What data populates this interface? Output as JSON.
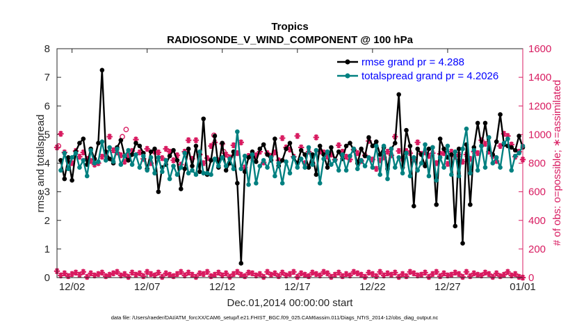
{
  "chart_data": {
    "type": "line",
    "title": "Tropics",
    "subtitle": "RADIOSONDE_V_WIND_COMPONENT @ 100 hPa",
    "xlabel": "Dec.01,2014 00:00:00 start",
    "ylabel": "rmse and totalspread",
    "ylabel_right": "# of obs: o=possible; ∗=assimilated",
    "xlim": [
      0,
      31
    ],
    "ylim": [
      0,
      8
    ],
    "ylim_right": [
      0,
      1600
    ],
    "x_ticks": [
      1,
      6,
      11,
      16,
      21,
      26,
      31
    ],
    "x_tick_labels": [
      "12/02",
      "12/07",
      "12/12",
      "12/17",
      "12/22",
      "12/27",
      "01/01"
    ],
    "y_ticks": [
      0,
      1,
      2,
      3,
      4,
      5,
      6,
      7,
      8
    ],
    "y_ticks_right": [
      0,
      200,
      400,
      600,
      800,
      1000,
      1200,
      1400,
      1600
    ],
    "legend": [
      "rmse grand pr = 4.288",
      "totalspread grand pr = 4.2026"
    ],
    "legend_position": "top-right",
    "colors": {
      "rmse": "#000000",
      "spread": "#008080",
      "obs": "#d81b60",
      "legend_text": "#0000ff"
    },
    "series": [
      {
        "name": "rmse",
        "color": "#000000",
        "values": [
          4.1,
          3.45,
          4.2,
          3.4,
          4.4,
          4.7,
          4.85,
          3.95,
          4.5,
          4.15,
          4.7,
          7.25,
          4.4,
          4.15,
          4.0,
          4.55,
          4.8,
          4.25,
          4.1,
          4.3,
          4.7,
          4.6,
          4.35,
          3.8,
          4.4,
          4.5,
          3.0,
          3.85,
          3.95,
          4.25,
          4.45,
          4.1,
          3.1,
          3.8,
          4.5,
          3.9,
          4.6,
          3.7,
          5.55,
          3.6,
          4.1,
          4.95,
          3.85,
          4.7,
          3.75,
          4.0,
          4.4,
          3.3,
          0.5,
          3.7,
          4.2,
          4.4,
          4.05,
          4.5,
          4.65,
          4.3,
          4.1,
          4.85,
          3.9,
          4.1,
          4.5,
          4.7,
          4.2,
          4.0,
          4.45,
          4.3,
          3.85,
          4.3,
          3.6,
          4.6,
          4.3,
          3.85,
          4.55,
          4.1,
          4.4,
          4.15,
          4.6,
          4.7,
          4.45,
          4.0,
          4.5,
          4.25,
          4.9,
          4.6,
          4.75,
          4.3,
          4.55,
          3.8,
          4.5,
          4.7,
          6.4,
          3.85,
          5.15,
          4.6,
          2.5,
          4.5,
          4.3,
          3.9,
          4.5,
          4.55,
          2.55,
          4.85,
          4.5,
          4.2,
          4.3,
          1.8,
          4.5,
          1.2,
          4.65,
          2.55,
          4.55,
          5.4,
          4.6,
          5.4,
          4.5,
          4.3,
          4.75,
          5.7,
          4.65,
          4.6,
          4.55,
          4.45,
          4.95,
          4.55
        ],
        "x_start": 0.25,
        "x_step": 0.25
      },
      {
        "name": "totalspread",
        "color": "#008080",
        "values": [
          3.75,
          4.35,
          3.8,
          4.2,
          4.35,
          3.85,
          4.1,
          3.55,
          4.45,
          4.0,
          4.05,
          4.75,
          4.1,
          4.55,
          4.05,
          4.5,
          3.95,
          4.25,
          4.45,
          3.95,
          4.3,
          3.85,
          4.25,
          3.75,
          4.2,
          3.65,
          4.2,
          3.7,
          4.1,
          3.45,
          3.9,
          3.6,
          3.85,
          4.35,
          3.65,
          3.75,
          3.6,
          4.4,
          3.65,
          3.65,
          3.6,
          4.15,
          3.9,
          4.2,
          3.9,
          4.15,
          3.8,
          5.1,
          3.8,
          4.25,
          3.25,
          4.3,
          3.3,
          3.9,
          4.1,
          3.85,
          4.2,
          3.55,
          4.0,
          3.3,
          4.05,
          3.65,
          4.2,
          3.85,
          4.15,
          3.85,
          4.55,
          3.95,
          4.45,
          3.3,
          4.15,
          4.4,
          3.95,
          4.1,
          3.75,
          4.3,
          3.75,
          4.25,
          4.5,
          3.8,
          4.1,
          3.9,
          4.2,
          3.85,
          4.6,
          3.6,
          4.6,
          3.45,
          4.5,
          3.85,
          4.2,
          3.65,
          4.35,
          3.55,
          4.2,
          3.75,
          4.0,
          4.65,
          3.55,
          4.55,
          3.4,
          4.2,
          3.85,
          4.6,
          3.6,
          4.4,
          3.55,
          4.5,
          5.2,
          3.65,
          4.45,
          3.75,
          4.6,
          3.85,
          4.9,
          4.0,
          4.2,
          3.85,
          4.7,
          4.85,
          3.75,
          4.25,
          4.35,
          4.6
        ],
        "x_start": 0.25,
        "x_step": 0.25
      },
      {
        "name": "obs_assimilated_high",
        "axis": "right",
        "marker": "star",
        "color": "#d81b60",
        "values": [
          910,
          1005,
          875,
          815,
          800,
          885,
          845,
          875,
          830,
          815,
          790,
          800,
          845,
          855,
          985,
          890,
          875,
          855,
          810,
          855,
          885,
          965,
          875,
          830,
          900,
          800,
          880,
          875,
          835,
          900,
          880,
          820,
          855,
          790,
          880,
          960,
          830,
          960,
          860,
          800,
          835,
          920,
          945,
          820,
          935,
          860,
          840,
          925,
          870,
          945,
          770,
          850,
          835,
          855,
          880,
          805,
          870,
          850,
          875,
          820,
          975,
          910,
          895,
          845,
          990,
          910,
          800,
          880,
          800,
          980,
          880,
          875,
          845,
          860,
          825,
          925,
          880,
          845,
          825,
          895,
          870,
          815,
          855,
          955,
          825,
          760,
          820,
          840,
          880,
          855,
          985,
          885,
          830,
          885,
          870,
          825,
          945,
          865,
          875,
          850,
          870,
          800,
          865,
          870,
          795,
          880,
          845,
          860,
          810,
          860,
          830,
          880,
          870,
          960,
          935,
          880,
          850,
          815,
          920,
          1005,
          990,
          930,
          845,
          880,
          825,
          820
        ],
        "x_start": 0.0,
        "x_step": 0.25
      },
      {
        "name": "obs_assimilated_low",
        "axis": "right",
        "marker": "star",
        "color": "#d81b60",
        "values": [
          45,
          15,
          30,
          10,
          25,
          35,
          20,
          40,
          5,
          30,
          15,
          25,
          35,
          10,
          20,
          30,
          40,
          15,
          25,
          5,
          35,
          20,
          30,
          10,
          40,
          25,
          15,
          35,
          5,
          30,
          20,
          10,
          25,
          40,
          15,
          35,
          20,
          5,
          30,
          25,
          40,
          10,
          20,
          35,
          15,
          30,
          5,
          25,
          40,
          20,
          10,
          35,
          30,
          15,
          25,
          5,
          40,
          20,
          30,
          10,
          35,
          15,
          25,
          40,
          5,
          30,
          20,
          10,
          35,
          25,
          15,
          40,
          30,
          5,
          20,
          35,
          10,
          25,
          15,
          40,
          30,
          20,
          5,
          35,
          25,
          10,
          40,
          15,
          30,
          20,
          35,
          5,
          25,
          10,
          40,
          30,
          15,
          20,
          35,
          5,
          25,
          40,
          10,
          30,
          15,
          20,
          35,
          25,
          5,
          40,
          10,
          30,
          20,
          15,
          35,
          25,
          5,
          30,
          10,
          20,
          40,
          15,
          25,
          5,
          0,
          0
        ],
        "x_start": 0.0,
        "x_step": 0.25
      },
      {
        "name": "obs_possible",
        "axis": "right",
        "marker": "circle",
        "color": "#d81b60",
        "values": [
          920,
          985,
          1035,
          995,
          880,
          840
        ],
        "x": [
          0.1,
          4.35,
          4.6,
          10.45,
          11.1,
          26.6
        ]
      }
    ]
  },
  "footer_text": "data file: /Users/raeder/DAI/ATM_forcXX/CAM6_setup/f.e21.FHIST_BGC.f09_025.CAM6assim.011/Diags_NTrS_2014-12/obs_diag_output.nc"
}
